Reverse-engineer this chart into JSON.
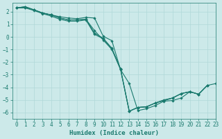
{
  "xlabel": "Humidex (Indice chaleur)",
  "ylabel": "",
  "xlim": [
    -0.5,
    23
  ],
  "ylim": [
    -6.5,
    2.7
  ],
  "xticks": [
    0,
    1,
    2,
    3,
    4,
    5,
    6,
    7,
    8,
    9,
    10,
    11,
    12,
    13,
    14,
    15,
    16,
    17,
    18,
    19,
    20,
    21,
    22,
    23
  ],
  "yticks": [
    -6,
    -5,
    -4,
    -3,
    -2,
    -1,
    0,
    1,
    2
  ],
  "bg_color": "#cce9e9",
  "grid_color": "#b0d8d8",
  "line_color": "#1a7a6e",
  "series": [
    [
      2.3,
      2.4,
      2.15,
      1.9,
      1.75,
      1.6,
      1.5,
      1.45,
      1.55,
      1.5,
      0.05,
      -0.3,
      -2.6,
      -3.7,
      -5.85,
      -5.7,
      -5.45,
      -5.1,
      -5.05,
      -4.85,
      -4.35,
      -4.55,
      -3.85,
      null
    ],
    [
      2.3,
      2.4,
      2.15,
      1.9,
      1.75,
      1.5,
      1.35,
      1.35,
      1.4,
      0.5,
      -0.25,
      -1.0,
      -2.6,
      -5.9,
      -5.6,
      -5.55,
      -5.25,
      -5.0,
      -4.85,
      -4.5,
      -4.35,
      -4.55,
      -3.85,
      null
    ],
    [
      2.3,
      2.35,
      2.15,
      1.9,
      1.75,
      1.5,
      1.35,
      1.35,
      1.4,
      0.3,
      -0.1,
      -0.9,
      -2.55,
      -5.9,
      -5.6,
      -5.55,
      -5.25,
      -5.05,
      -4.85,
      -4.5,
      -4.35,
      -4.55,
      -3.85,
      null
    ],
    [
      2.3,
      2.3,
      2.1,
      1.85,
      1.65,
      1.4,
      1.25,
      1.25,
      1.35,
      0.2,
      -0.15,
      -0.95,
      -2.55,
      -5.9,
      -5.6,
      -5.55,
      -5.25,
      -5.05,
      -4.85,
      -4.5,
      -4.35,
      -4.55,
      -3.85,
      -3.7
    ]
  ]
}
